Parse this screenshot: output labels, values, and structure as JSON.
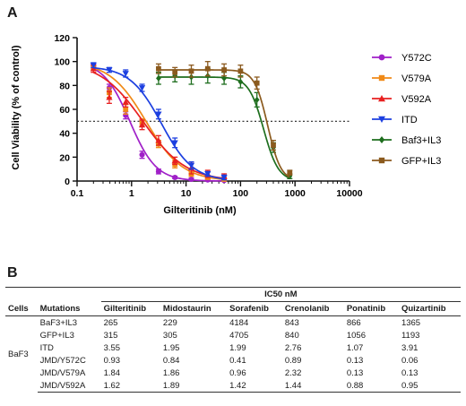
{
  "panel_a_label": "A",
  "panel_b_label": "B",
  "chart_data": {
    "type": "line",
    "xlabel": "Gilteritinib (nM)",
    "ylabel": "Cell Viability (% of control)",
    "x_scale": "log",
    "xlim": [
      0.1,
      10000
    ],
    "ylim": [
      0,
      120
    ],
    "x_ticks": [
      "0.1",
      "1",
      "10",
      "100",
      "1000",
      "10000"
    ],
    "y_ticks": [
      "0",
      "20",
      "40",
      "60",
      "80",
      "100",
      "120"
    ],
    "reference_line": {
      "y": 50,
      "style": "dotted"
    },
    "grid": false,
    "legend_position": "right",
    "series": [
      {
        "name": "Y572C",
        "color": "#a020c8",
        "marker": "circle",
        "x": [
          0.2,
          0.39,
          0.78,
          1.56,
          3.13,
          6.25,
          12.5,
          25,
          50
        ],
        "y": [
          96,
          78,
          55,
          22,
          8,
          3,
          1.5,
          1,
          0.5
        ],
        "err": [
          2,
          3,
          3,
          3,
          2,
          1,
          1,
          1,
          1
        ],
        "fit_ic50": 0.93,
        "fit_top": 100,
        "fit_bottom": 0,
        "fit_hill": 1.8
      },
      {
        "name": "V579A",
        "color": "#f08a18",
        "marker": "square",
        "x": [
          0.2,
          0.39,
          0.78,
          1.56,
          3.13,
          6.25,
          12.5,
          25,
          50
        ],
        "y": [
          95,
          74,
          60,
          49,
          31,
          14,
          6,
          3,
          1.5
        ],
        "err": [
          2,
          4,
          4,
          3,
          3,
          3,
          2,
          1,
          1
        ],
        "fit_ic50": 1.84,
        "fit_top": 100,
        "fit_bottom": 0,
        "fit_hill": 1.3
      },
      {
        "name": "V592A",
        "color": "#e82020",
        "marker": "triangle-up",
        "x": [
          0.2,
          0.39,
          0.78,
          1.56,
          3.13,
          6.25,
          12.5,
          25,
          50
        ],
        "y": [
          94,
          70,
          66,
          47,
          34,
          17,
          11,
          6,
          4
        ],
        "err": [
          3,
          5,
          4,
          4,
          4,
          3,
          5,
          3,
          2
        ],
        "fit_ic50": 1.62,
        "fit_top": 100,
        "fit_bottom": 0,
        "fit_hill": 1.1
      },
      {
        "name": "ITD",
        "color": "#1c3fe0",
        "marker": "triangle-down",
        "x": [
          0.2,
          0.39,
          0.78,
          1.56,
          3.13,
          6.25,
          12.5,
          25,
          50
        ],
        "y": [
          97,
          93,
          90,
          78,
          56,
          32,
          13,
          6,
          3
        ],
        "err": [
          2,
          2,
          3,
          3,
          4,
          4,
          3,
          2,
          2
        ],
        "fit_ic50": 3.55,
        "fit_top": 96,
        "fit_bottom": 0,
        "fit_hill": 1.5
      },
      {
        "name": "Baf3+IL3",
        "color": "#1e6e1e",
        "marker": "diamond",
        "x": [
          3.13,
          6.25,
          12.5,
          25,
          50,
          100,
          200,
          400,
          800
        ],
        "y": [
          86,
          88,
          87,
          88,
          86,
          83,
          68,
          28,
          4
        ],
        "err": [
          5,
          5,
          6,
          6,
          5,
          5,
          6,
          4,
          2
        ],
        "fit_ic50": 265,
        "fit_top": 87,
        "fit_bottom": 0,
        "fit_hill": 3.2
      },
      {
        "name": "GFP+IL3",
        "color": "#8b5a1e",
        "marker": "square",
        "x": [
          3.13,
          6.25,
          12.5,
          25,
          50,
          100,
          200,
          400,
          800
        ],
        "y": [
          94,
          91,
          92,
          94,
          93,
          92,
          82,
          30,
          7
        ],
        "err": [
          4,
          4,
          5,
          6,
          5,
          5,
          5,
          4,
          2
        ],
        "fit_ic50": 315,
        "fit_top": 93,
        "fit_bottom": 0,
        "fit_hill": 3.6
      }
    ]
  },
  "table": {
    "header_span": "IC50 nM",
    "columns": [
      "Cells",
      "Mutations",
      "Gilteritinib",
      "Midostaurin",
      "Sorafenib",
      "Crenolanib",
      "Ponatinib",
      "Quizartinib"
    ],
    "cell_group": "BaF3",
    "rows": [
      [
        "BaF3+IL3",
        "265",
        "229",
        "4184",
        "843",
        "866",
        "1365"
      ],
      [
        "GFP+IL3",
        "315",
        "305",
        "4705",
        "840",
        "1056",
        "1193"
      ],
      [
        "ITD",
        "3.55",
        "1.95",
        "1.99",
        "2.76",
        "1.07",
        "3.91"
      ],
      [
        "JMD/Y572C",
        "0.93",
        "0.84",
        "0.41",
        "0.89",
        "0.13",
        "0.06"
      ],
      [
        "JMD/V579A",
        "1.84",
        "1.86",
        "0.96",
        "2.32",
        "0.13",
        "0.13"
      ],
      [
        "JMD/V592A",
        "1.62",
        "1.89",
        "1.42",
        "1.44",
        "0.88",
        "0.95"
      ]
    ]
  }
}
